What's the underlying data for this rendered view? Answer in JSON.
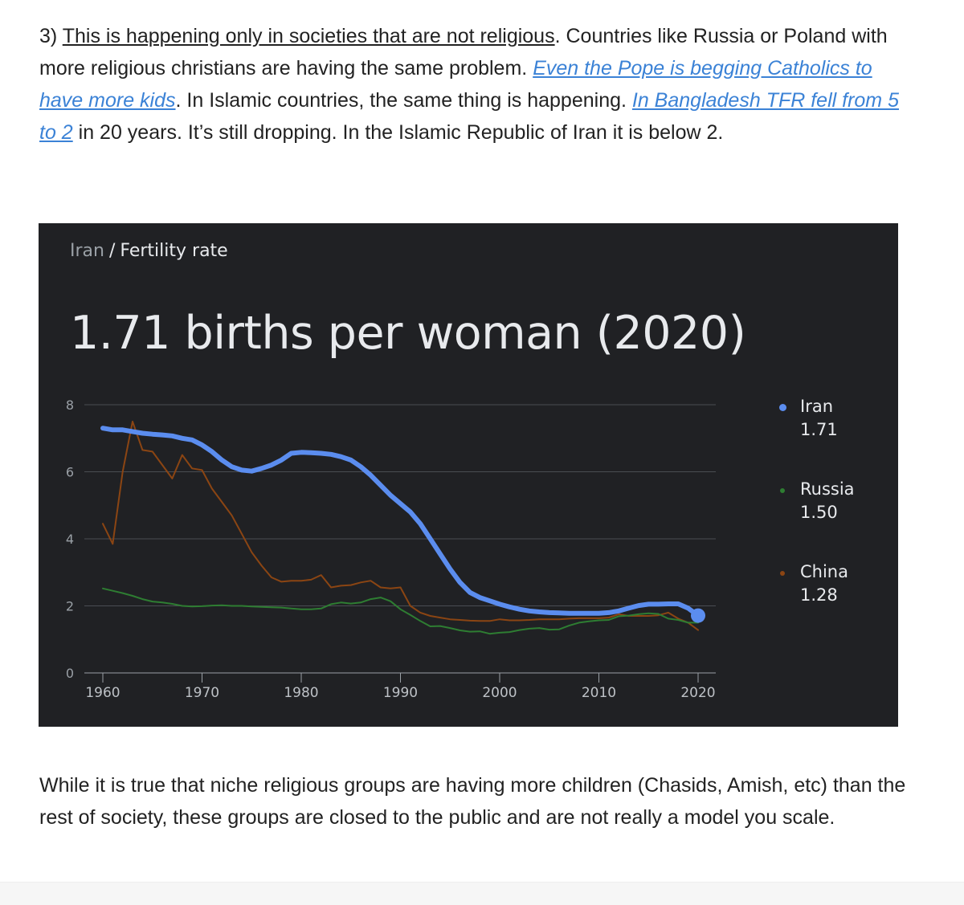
{
  "para1": {
    "prefix": "3) ",
    "underlined": "This is happening only in societies that are not religious",
    "text1": ". Countries like Russia or Poland with more religious christians are having the same problem. ",
    "link1": "Even the Pope is begging Catholics to have more kids",
    "text2": ". In Islamic countries, the same thing is happening. ",
    "link2": "In Bangladesh TFR fell from 5 to 2",
    "text3": " in 20 years. It’s still dropping. In the Islamic Republic of Iran it is below 2."
  },
  "card": {
    "country": "Iran",
    "separator": "/",
    "metric": "Fertility rate",
    "headline": "1.71 births per woman (2020)"
  },
  "legend": [
    {
      "name": "Iran",
      "value": "1.71",
      "color": "#5b8def"
    },
    {
      "name": "Russia",
      "value": "1.50",
      "color": "#2e7d32"
    },
    {
      "name": "China",
      "value": "1.28",
      "color": "#8b4513"
    }
  ],
  "para2": "While it is true that niche religious groups are having more children (Chasids, Amish, etc) than the rest of society, these groups are closed to the public and are not really a model you scale.",
  "chart_data": {
    "type": "line",
    "title": "1.71 births per woman (2020)",
    "ylim": [
      0,
      8
    ],
    "yticks": [
      0,
      2,
      4,
      6,
      8
    ],
    "xticks": [
      1960,
      1970,
      1980,
      1990,
      2000,
      2010,
      2020
    ],
    "grid": true,
    "legend_position": "right",
    "x": [
      1960,
      1961,
      1962,
      1963,
      1964,
      1965,
      1966,
      1967,
      1968,
      1969,
      1970,
      1971,
      1972,
      1973,
      1974,
      1975,
      1976,
      1977,
      1978,
      1979,
      1980,
      1981,
      1982,
      1983,
      1984,
      1985,
      1986,
      1987,
      1988,
      1989,
      1990,
      1991,
      1992,
      1993,
      1994,
      1995,
      1996,
      1997,
      1998,
      1999,
      2000,
      2001,
      2002,
      2003,
      2004,
      2005,
      2006,
      2007,
      2008,
      2009,
      2010,
      2011,
      2012,
      2013,
      2014,
      2015,
      2016,
      2017,
      2018,
      2019,
      2020
    ],
    "series": [
      {
        "name": "Iran",
        "color": "#5b8def",
        "values": [
          7.3,
          7.25,
          7.25,
          7.2,
          7.15,
          7.12,
          7.1,
          7.07,
          7.0,
          6.95,
          6.8,
          6.6,
          6.35,
          6.15,
          6.05,
          6.02,
          6.1,
          6.2,
          6.35,
          6.55,
          6.58,
          6.57,
          6.55,
          6.52,
          6.45,
          6.35,
          6.15,
          5.9,
          5.6,
          5.3,
          5.05,
          4.8,
          4.45,
          4.0,
          3.55,
          3.1,
          2.7,
          2.4,
          2.25,
          2.15,
          2.05,
          1.97,
          1.9,
          1.85,
          1.82,
          1.8,
          1.79,
          1.78,
          1.78,
          1.78,
          1.78,
          1.8,
          1.85,
          1.93,
          2.01,
          2.05,
          2.05,
          2.06,
          2.06,
          1.93,
          1.71
        ]
      },
      {
        "name": "Russia",
        "color": "#2e7d32",
        "values": [
          2.52,
          2.45,
          2.38,
          2.3,
          2.2,
          2.13,
          2.1,
          2.06,
          2.0,
          1.98,
          1.99,
          2.01,
          2.02,
          2.0,
          2.0,
          1.98,
          1.97,
          1.96,
          1.95,
          1.92,
          1.9,
          1.9,
          1.92,
          2.05,
          2.1,
          2.07,
          2.1,
          2.2,
          2.25,
          2.14,
          1.9,
          1.73,
          1.55,
          1.39,
          1.4,
          1.34,
          1.27,
          1.23,
          1.24,
          1.17,
          1.2,
          1.22,
          1.28,
          1.32,
          1.34,
          1.29,
          1.3,
          1.41,
          1.5,
          1.54,
          1.57,
          1.58,
          1.69,
          1.71,
          1.75,
          1.78,
          1.76,
          1.62,
          1.58,
          1.5,
          1.5
        ]
      },
      {
        "name": "China",
        "color": "#8b4513",
        "values": [
          4.45,
          3.85,
          6.0,
          7.5,
          6.65,
          6.6,
          6.2,
          5.8,
          6.5,
          6.1,
          6.05,
          5.5,
          5.1,
          4.7,
          4.15,
          3.6,
          3.2,
          2.85,
          2.72,
          2.75,
          2.75,
          2.78,
          2.92,
          2.55,
          2.6,
          2.62,
          2.7,
          2.75,
          2.55,
          2.52,
          2.55,
          2.0,
          1.8,
          1.7,
          1.65,
          1.6,
          1.58,
          1.56,
          1.55,
          1.55,
          1.6,
          1.57,
          1.57,
          1.58,
          1.6,
          1.6,
          1.6,
          1.62,
          1.63,
          1.63,
          1.63,
          1.65,
          1.75,
          1.7,
          1.7,
          1.7,
          1.72,
          1.8,
          1.62,
          1.5,
          1.28
        ]
      }
    ]
  }
}
